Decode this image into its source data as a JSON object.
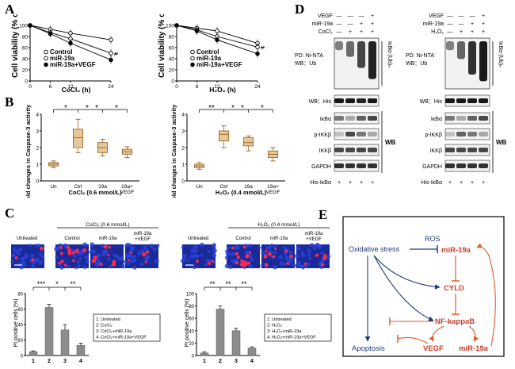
{
  "panels": {
    "A": "A",
    "B": "B",
    "C": "C",
    "D": "D",
    "E": "E"
  },
  "colors": {
    "dark_blue": "#1f3a7a",
    "red": "#d03a2a",
    "orange_red": "#e05a2a",
    "box_fill": "#e8c89a",
    "box_edge": "#9b6a2a",
    "bar_fill": "#8c8c8c",
    "blot_bg": "#f2f2f2",
    "fluor_bg": "#1a2a9a",
    "fluor_dot": "#ff2a4a"
  },
  "chart_data": [
    {
      "type": "line",
      "title": "",
      "xlabel": "CoCl₂ (h)",
      "ylabel": "Cell viability (% of control)",
      "x": [
        0,
        6,
        12,
        24
      ],
      "xlim": [
        0,
        24
      ],
      "ylim": [
        0,
        100
      ],
      "xticks": [
        "0",
        "6",
        "12",
        "24"
      ],
      "yticks": [
        "0",
        "20",
        "40",
        "60",
        "80",
        "100"
      ],
      "series": [
        {
          "name": "Control",
          "values": [
            100,
            93,
            86,
            74
          ]
        },
        {
          "name": "miR-19a",
          "values": [
            100,
            87,
            76,
            50
          ]
        },
        {
          "name": "miR-19a+VEGF",
          "values": [
            100,
            85,
            68,
            38
          ]
        }
      ],
      "annotations": [
        "#",
        "**"
      ]
    },
    {
      "type": "line",
      "title": "",
      "xlabel": "H₂O₂ (h)",
      "ylabel": "Cell viability (% of control)",
      "x": [
        0,
        6,
        12,
        24
      ],
      "xlim": [
        0,
        24
      ],
      "ylim": [
        0,
        100
      ],
      "xticks": [
        "0",
        "6",
        "12",
        "24"
      ],
      "yticks": [
        "0",
        "20",
        "40",
        "60",
        "80",
        "100"
      ],
      "series": [
        {
          "name": "Control",
          "values": [
            100,
            95,
            90,
            68
          ]
        },
        {
          "name": "miR-19a",
          "values": [
            100,
            92,
            80,
            61
          ]
        },
        {
          "name": "miR-19a+VEGF",
          "values": [
            100,
            90,
            74,
            49
          ]
        }
      ],
      "annotations": [
        "#",
        "**"
      ]
    },
    {
      "type": "box",
      "xlabel": "CoCl₂ (0.6 mmol/L)",
      "ylabel": "Fold changes in Caspase-3 activity",
      "categories": [
        "Un",
        "Ctrl",
        "19a",
        "19a+ VEGF"
      ],
      "ylim": [
        0,
        4
      ],
      "yticks": [
        "0",
        "1",
        "2",
        "3",
        "4"
      ],
      "boxes": [
        {
          "min": 0.8,
          "q1": 0.9,
          "median": 1.0,
          "q3": 1.1,
          "max": 1.2
        },
        {
          "min": 1.7,
          "q1": 2.0,
          "median": 2.6,
          "q3": 3.1,
          "max": 3.7
        },
        {
          "min": 1.5,
          "q1": 1.7,
          "median": 2.0,
          "q3": 2.3,
          "max": 2.5
        },
        {
          "min": 1.4,
          "q1": 1.6,
          "median": 1.75,
          "q3": 1.9,
          "max": 2.05
        }
      ],
      "annotations": [
        "*",
        "*",
        "*",
        "*"
      ]
    },
    {
      "type": "box",
      "xlabel": "H₂O₂ (0.4 mmol/L)",
      "ylabel": "Fold changes in Caspase-3 activity",
      "categories": [
        "Un",
        "Ctrl",
        "19a",
        "19a+ VEGF"
      ],
      "ylim": [
        0,
        4
      ],
      "yticks": [
        "0",
        "1",
        "2",
        "3",
        "4"
      ],
      "boxes": [
        {
          "min": 0.7,
          "q1": 0.8,
          "median": 0.9,
          "q3": 1.0,
          "max": 1.1
        },
        {
          "min": 2.0,
          "q1": 2.4,
          "median": 2.8,
          "q3": 3.0,
          "max": 3.3
        },
        {
          "min": 1.8,
          "q1": 2.1,
          "median": 2.3,
          "q3": 2.6,
          "max": 2.7
        },
        {
          "min": 1.2,
          "q1": 1.4,
          "median": 1.6,
          "q3": 1.8,
          "max": 2.0
        }
      ],
      "annotations": [
        "**",
        "*",
        "*",
        "*"
      ]
    },
    {
      "type": "bar",
      "xlabel": "",
      "ylabel": "PI positive cells (%)",
      "categories": [
        "1",
        "2",
        "3",
        "4"
      ],
      "values": [
        5,
        62,
        33,
        13
      ],
      "errors": [
        1,
        4,
        7,
        3
      ],
      "ylim": [
        0,
        80
      ],
      "yticks": [
        "0",
        "20",
        "40",
        "60",
        "80"
      ],
      "legend": [
        "1: Untreated",
        "2: CoCl₂",
        "3: CoCl₂+miR-19a",
        "4: CoCl₂+miR-19a+VEGF"
      ],
      "annotations": [
        "***",
        "*",
        "**"
      ]
    },
    {
      "type": "bar",
      "xlabel": "",
      "ylabel": "PI positive cells (%)",
      "categories": [
        "1",
        "2",
        "3",
        "4"
      ],
      "values": [
        4,
        75,
        40,
        12
      ],
      "errors": [
        2,
        5,
        4,
        2
      ],
      "ylim": [
        0,
        100
      ],
      "yticks": [
        "0",
        "20",
        "40",
        "60",
        "80",
        "100"
      ],
      "legend": [
        "1: Untreated",
        "2: H₂O₂",
        "3: H₂O₂+miR-19a",
        "4: H₂O₂+miR-19a+VEGF"
      ],
      "annotations": [
        "**",
        "**",
        "**"
      ]
    }
  ],
  "panelA": {
    "legend": [
      "Control",
      "miR-19a",
      "miR-19a+VEGF"
    ]
  },
  "panelB": {
    "sig": "*",
    "sig2": "**"
  },
  "panelC": {
    "left": {
      "header": "CoCl₂ (0.6 mmol/L)",
      "untreated": "Untreated",
      "cols": [
        "Control",
        "miR-19a",
        "miR-19a",
        "+VEGF"
      ]
    },
    "right": {
      "header": "H₂O₂ (0.4 mmol/L)",
      "untreated": "Untreated",
      "cols": [
        "Control",
        "miR-19a",
        "miR-19a",
        "+VEGF"
      ]
    }
  },
  "panelD": {
    "left": {
      "rows_top": [
        {
          "label": "VEGF",
          "marks": [
            "—",
            "—",
            "—",
            "+"
          ]
        },
        {
          "label": "miR-19a",
          "marks": [
            "—",
            "—",
            "+",
            "+"
          ]
        },
        {
          "label": "CoCl₂",
          "marks": [
            "—",
            "+",
            "+",
            "+"
          ]
        }
      ],
      "pd": "PD: Ni-NTA",
      "wb": "WB：Ub",
      "ub_label": "IκBα-(Ub)ₙ",
      "blots": [
        "WB：His",
        "IκBα",
        "p-IKKβ",
        "IKKβ",
        "GAPDH"
      ],
      "wb_bracket": "WB",
      "bottom": {
        "label": "His-IκBα",
        "marks": [
          "+",
          "+",
          "+",
          "+"
        ]
      }
    },
    "right": {
      "rows_top": [
        {
          "label": "VEGF",
          "marks": [
            "—",
            "—",
            "—",
            "+"
          ]
        },
        {
          "label": "miR-19a",
          "marks": [
            "—",
            "—",
            "+",
            "+"
          ]
        },
        {
          "label": "H₂O₂",
          "marks": [
            "—",
            "+",
            "+",
            "+"
          ]
        }
      ],
      "pd": "PD: Ni-NTA",
      "wb": "WB：Ub",
      "ub_label": "IκBα-(Ub)ₙ",
      "blots": [
        "WB：His",
        "IκBα",
        "p-IKKβ",
        "IKKβ",
        "GAPDH"
      ],
      "wb_bracket": "WB",
      "bottom": {
        "label": "His-IκBα",
        "marks": [
          "+",
          "+",
          "+",
          "+"
        ]
      }
    }
  },
  "panelE": {
    "ros": "ROS",
    "oxidative": "Oxidative stress",
    "mir19a": "miR-19a",
    "cyld": "CYLD",
    "nfkb": "NF-kappaB",
    "apoptosis": "Apoptosis",
    "vegf": "VEGF",
    "mir19a_b": "miR-19a"
  }
}
